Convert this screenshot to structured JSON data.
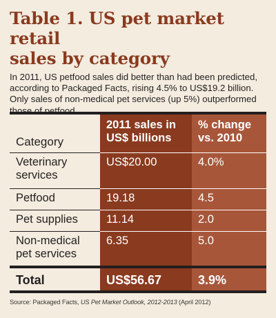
{
  "title_line1": "Table 1. US pet market retail",
  "title_line2": "sales by category",
  "intro": "In 2011, US petfood sales did better than had been predicted, according to Packaged Facts, rising 4.5% to US$19.2 billion. Only sales of non-medical pet services (up 5%) outperformed those of petfood.",
  "table": {
    "headers": {
      "category": "Category",
      "sales_line1": "2011 sales in",
      "sales_line2": "US$ billions",
      "change_line1": "% change",
      "change_line2": "vs. 2010"
    },
    "rows": [
      {
        "category_line1": "Veterinary",
        "category_line2": "services",
        "sales": "US$20.00",
        "change": "4.0%"
      },
      {
        "category_line1": "Petfood",
        "category_line2": "",
        "sales": "19.18",
        "change": "4.5"
      },
      {
        "category_line1": "Pet supplies",
        "category_line2": "",
        "sales": "11.14",
        "change": "2.0"
      },
      {
        "category_line1": "Non-medical",
        "category_line2": "pet services",
        "sales": "6.35",
        "change": "5.0"
      }
    ],
    "total": {
      "label": "Total",
      "sales": "US$56.67",
      "change": "3.9%"
    }
  },
  "source": {
    "prefix": "Source:  Packaged Facts, ",
    "publication": "US Pet Market Outlook, 2012-2013",
    "suffix": " (April 2012)"
  },
  "colors": {
    "title": "#8a3a1f",
    "background": "#f3ecdf",
    "sales_column": "#8a3a1f",
    "change_column": "#a8563a"
  }
}
